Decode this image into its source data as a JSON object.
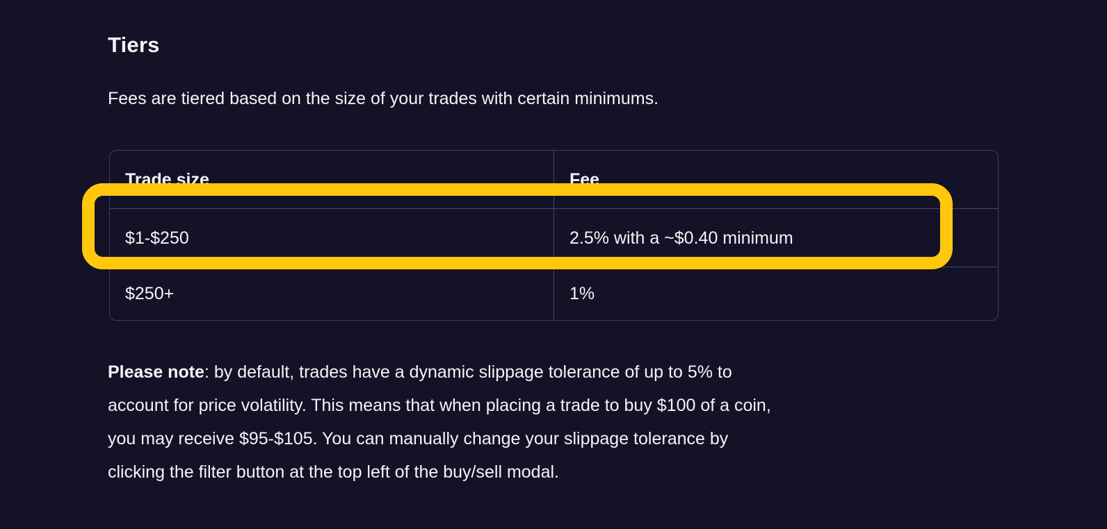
{
  "page": {
    "title": "Tiers",
    "intro": "Fees are tiered based on the size of your trades with certain minimums."
  },
  "table": {
    "columns": [
      "Trade size",
      "Fee"
    ],
    "rows": [
      {
        "trade_size": "$1-$250",
        "fee": "2.5% with a ~$0.40 minimum",
        "highlighted": true
      },
      {
        "trade_size": "$250+",
        "fee": "1%",
        "highlighted": false
      }
    ]
  },
  "note": {
    "bold": "Please note",
    "line1_rest": ": by default, trades have a dynamic slippage tolerance of up to 5% to",
    "lines": [
      "account for price volatility. This means that when placing a trade to buy $100 of a coin,",
      "you may receive $95-$105. You can manually change your slippage tolerance by",
      "clicking the filter button at the top left of the buy/sell modal."
    ]
  },
  "colors": {
    "background": "#141226",
    "text": "#f4f4f7",
    "table_border": "#403b6e",
    "table_line": "#474180",
    "highlight_yellow": "#ffc80d"
  }
}
